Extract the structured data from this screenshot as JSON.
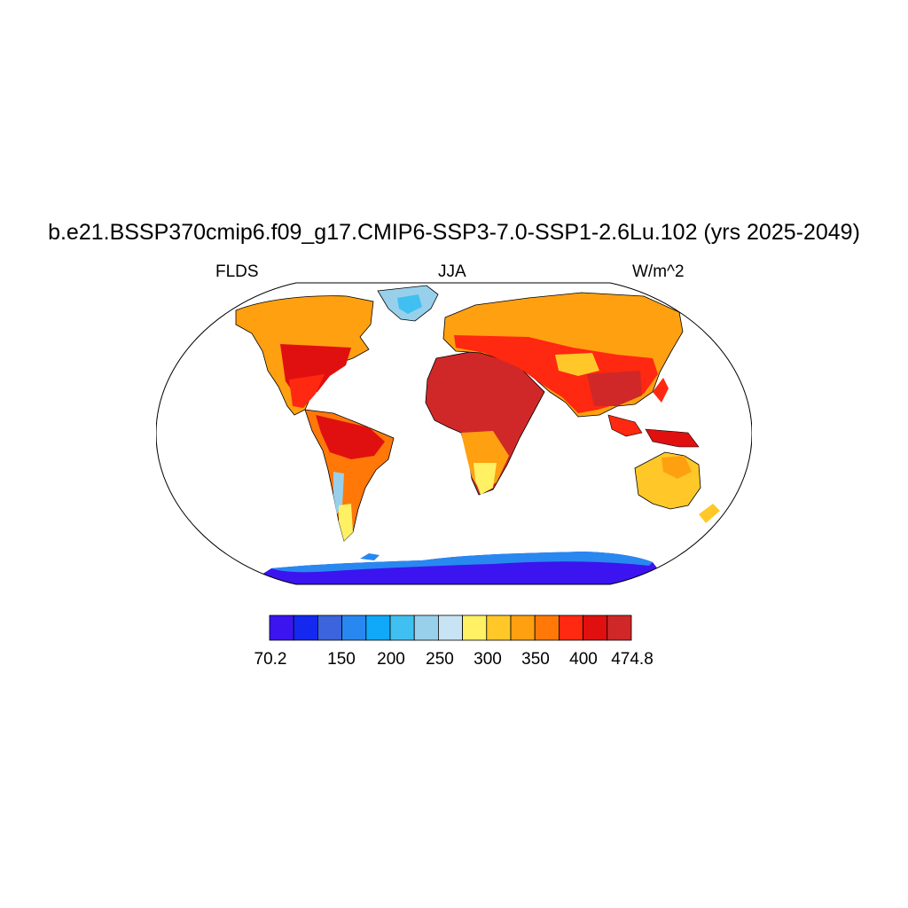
{
  "figure": {
    "title": "b.e21.BSSP370cmip6.f09_g17.CMIP6-SSP3-7.0-SSP1-2.6Lu.102 (yrs 2025-2049)",
    "left_label": "FLDS",
    "center_label": "JJA",
    "right_label": "W/m^2"
  },
  "colorbar": {
    "colors": [
      "#3c14f0",
      "#1428f0",
      "#3c64dc",
      "#2888f0",
      "#10a8f8",
      "#40c0f0",
      "#98d0ec",
      "#c8e4f4",
      "#fff064",
      "#ffc828",
      "#ffa010",
      "#ff7808",
      "#ff2810",
      "#e01010",
      "#d02828"
    ],
    "tick_labels": [
      "70.2",
      "150",
      "200",
      "250",
      "300",
      "350",
      "400",
      "474.8"
    ]
  },
  "map": {
    "projection": "Robinson",
    "field": "FLDS",
    "season": "JJA",
    "units": "W/m^2"
  }
}
